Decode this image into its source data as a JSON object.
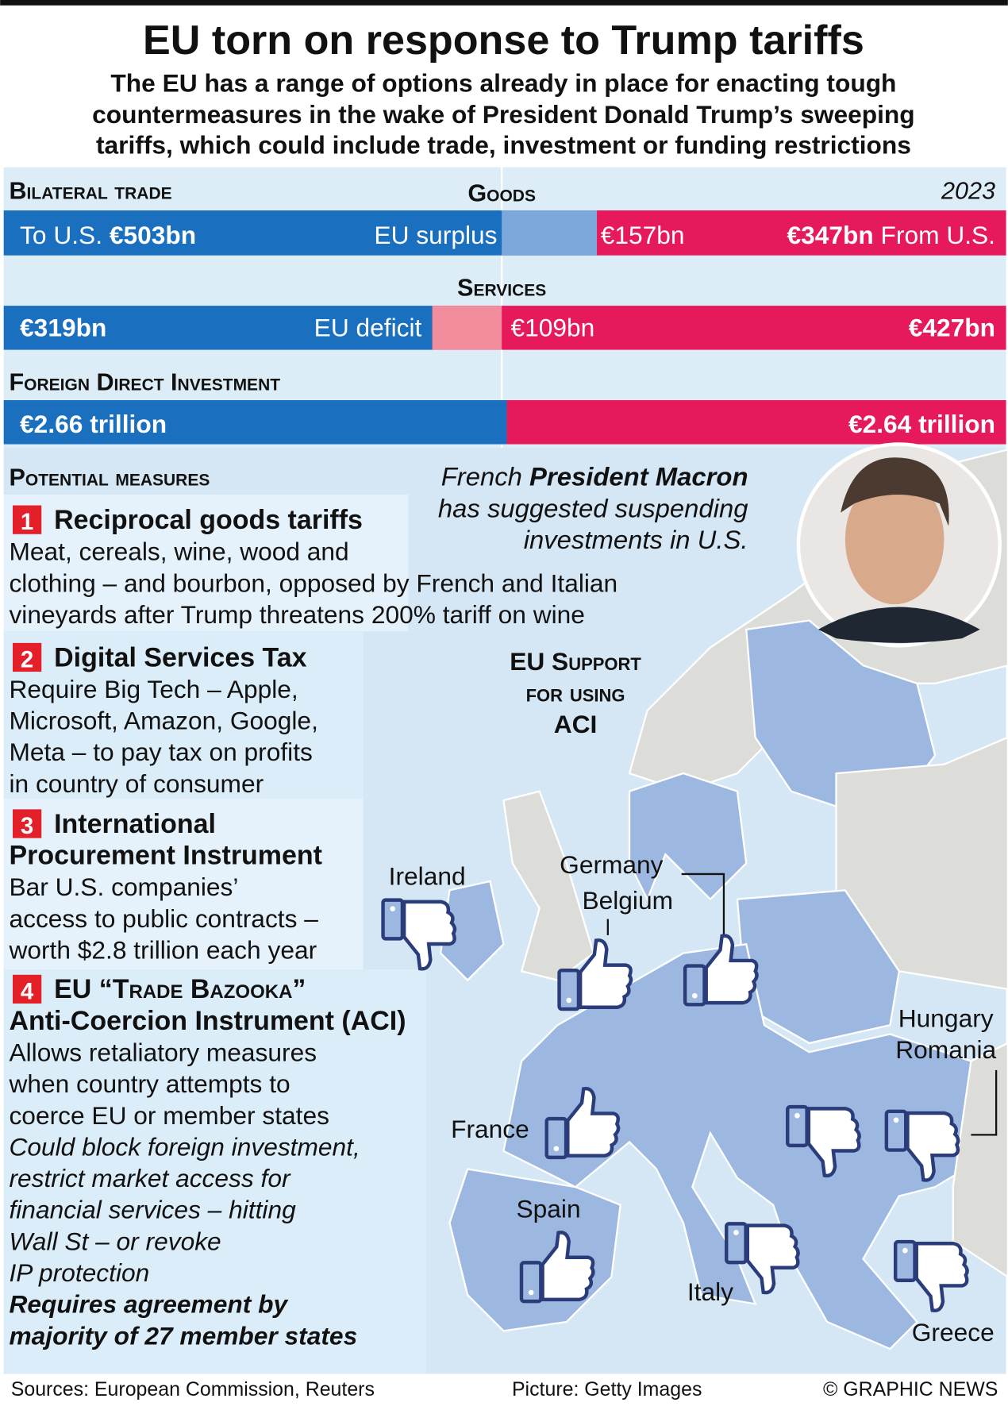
{
  "header": {
    "title": "EU torn on response to Trump tariffs",
    "subtitle": [
      "The EU has a range of options already in place for enacting tough",
      "countermeasures in the wake of President Donald Trump’s sweeping",
      "tariffs, which could include trade, investment or funding restrictions"
    ]
  },
  "trade": {
    "heading": "Bilateral trade",
    "year": "2023",
    "goods": {
      "label": "Goods",
      "to_us_label": "To U.S.",
      "to_us": {
        "value": 503,
        "label": "€503bn"
      },
      "balance_label": "EU surplus",
      "balance": "€157bn",
      "from_us": {
        "value": 347,
        "label": "€347bn"
      },
      "from_us_label": "From U.S."
    },
    "services": {
      "label": "Services",
      "to_us": {
        "value": 319,
        "label": "€319bn"
      },
      "balance_label": "EU deficit",
      "balance": "€109bn",
      "from_us": {
        "value": 427,
        "label": "€427bn"
      }
    },
    "fdi": {
      "label": "Foreign Direct Investment",
      "to_us": {
        "value": 2.66,
        "label": "€2.66 trillion"
      },
      "from_us": {
        "value": 2.64,
        "label": "€2.64 trillion"
      }
    }
  },
  "measures": {
    "heading": "Potential measures",
    "items": [
      {
        "number": "1",
        "title": [
          "Reciprocal goods tariffs"
        ],
        "body": [
          "Meat, cereals, wine, wood and",
          "clothing – and bourbon, opposed by French and Italian",
          "vineyards after Trump threatens 200% tariff on wine"
        ]
      },
      {
        "number": "2",
        "title": [
          "Digital Services Tax"
        ],
        "body": [
          "Require Big Tech – Apple,",
          "Microsoft, Amazon, Google,",
          "Meta – to pay tax on profits",
          "in country of consumer"
        ]
      },
      {
        "number": "3",
        "title": [
          "International",
          "Procurement Instrument"
        ],
        "body": [
          "Bar U.S. companies’",
          "access to public contracts –",
          "worth $2.8 trillion each year"
        ]
      },
      {
        "number": "4",
        "title": [
          "EU “Trade Bazooka”",
          "Anti-Coercion Instrument (ACI)"
        ],
        "body": [
          "Allows retaliatory measures",
          "when country attempts to",
          "coerce EU or member states"
        ],
        "italic": [
          "Could block foreign investment,",
          "restrict market access for",
          "financial services – hitting",
          "Wall St – or revoke",
          "IP protection"
        ],
        "bold": [
          "Requires agreement by",
          "majority of 27 member states"
        ]
      }
    ]
  },
  "quote": {
    "prefix": "French",
    "name": "President Macron",
    "lines": [
      "has suggested suspending",
      "investments in U.S."
    ]
  },
  "map": {
    "title": [
      "EU Support",
      "for using",
      "ACI"
    ],
    "countries": [
      "Ireland",
      "Germany",
      "Belgium",
      "Hungary",
      "Romania",
      "France",
      "Spain",
      "Italy",
      "Greece"
    ]
  },
  "footer": {
    "sources": "Sources: European Commission, Reuters",
    "picture": "Picture: Getty Images",
    "credit": "© GRAPHIC NEWS"
  }
}
